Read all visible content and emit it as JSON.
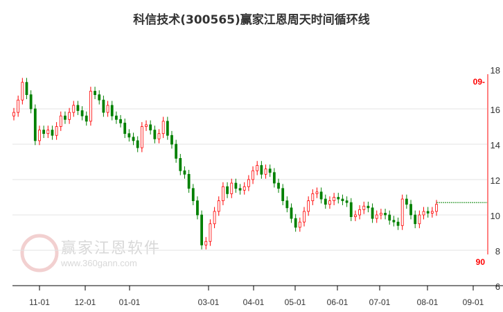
{
  "chart_data": {
    "type": "candlestick",
    "title": "科信技术(300565)赢家江恩周天时间循环线",
    "ylim": [
      6,
      18
    ],
    "yticks": [
      "6",
      "8",
      "10",
      "12",
      "14",
      "16",
      "18"
    ],
    "xticks": [
      "11-01",
      "12-01",
      "01-01",
      "03-01",
      "04-01",
      "05-01",
      "06-01",
      "07-01",
      "08-01",
      "09-01"
    ],
    "closes": [
      15.8,
      16.5,
      17.5,
      16.8,
      16.0,
      14.2,
      14.8,
      14.6,
      14.8,
      14.5,
      15.0,
      15.6,
      15.4,
      15.8,
      16.2,
      15.9,
      15.6,
      15.3,
      17.0,
      16.8,
      16.5,
      15.8,
      16.2,
      15.6,
      15.4,
      15.2,
      14.6,
      14.4,
      14.2,
      13.8,
      15.0,
      15.1,
      14.8,
      14.3,
      14.6,
      15.3,
      14.5,
      14.0,
      13.2,
      12.5,
      12.3,
      11.5,
      10.8,
      10.0,
      8.3,
      8.5,
      9.5,
      10.2,
      10.8,
      11.6,
      11.2,
      11.8,
      11.5,
      11.4,
      11.6,
      12.0,
      12.5,
      12.8,
      12.3,
      12.6,
      12.4,
      11.8,
      11.5,
      10.8,
      10.4,
      9.8,
      9.3,
      9.6,
      10.2,
      10.8,
      11.2,
      11.3,
      10.9,
      10.6,
      10.8,
      11.0,
      10.9,
      10.8,
      10.7,
      9.9,
      10.0,
      10.3,
      10.5,
      10.4,
      9.8,
      10.0,
      10.1,
      10.0,
      9.7,
      9.6,
      9.4,
      10.9,
      10.6,
      10.0,
      9.5,
      10.0,
      10.2,
      10.1,
      10.2,
      10.6
    ],
    "projection_line": 10.7,
    "cycle_line_labels": [
      "09-",
      "90"
    ],
    "colors": {
      "up": "#ff0000",
      "down": "#008000",
      "cycle_line": "#ff8080",
      "projection": "#008000"
    }
  },
  "watermark": {
    "name": "赢家江恩软件",
    "url": "www.360gann.com"
  }
}
